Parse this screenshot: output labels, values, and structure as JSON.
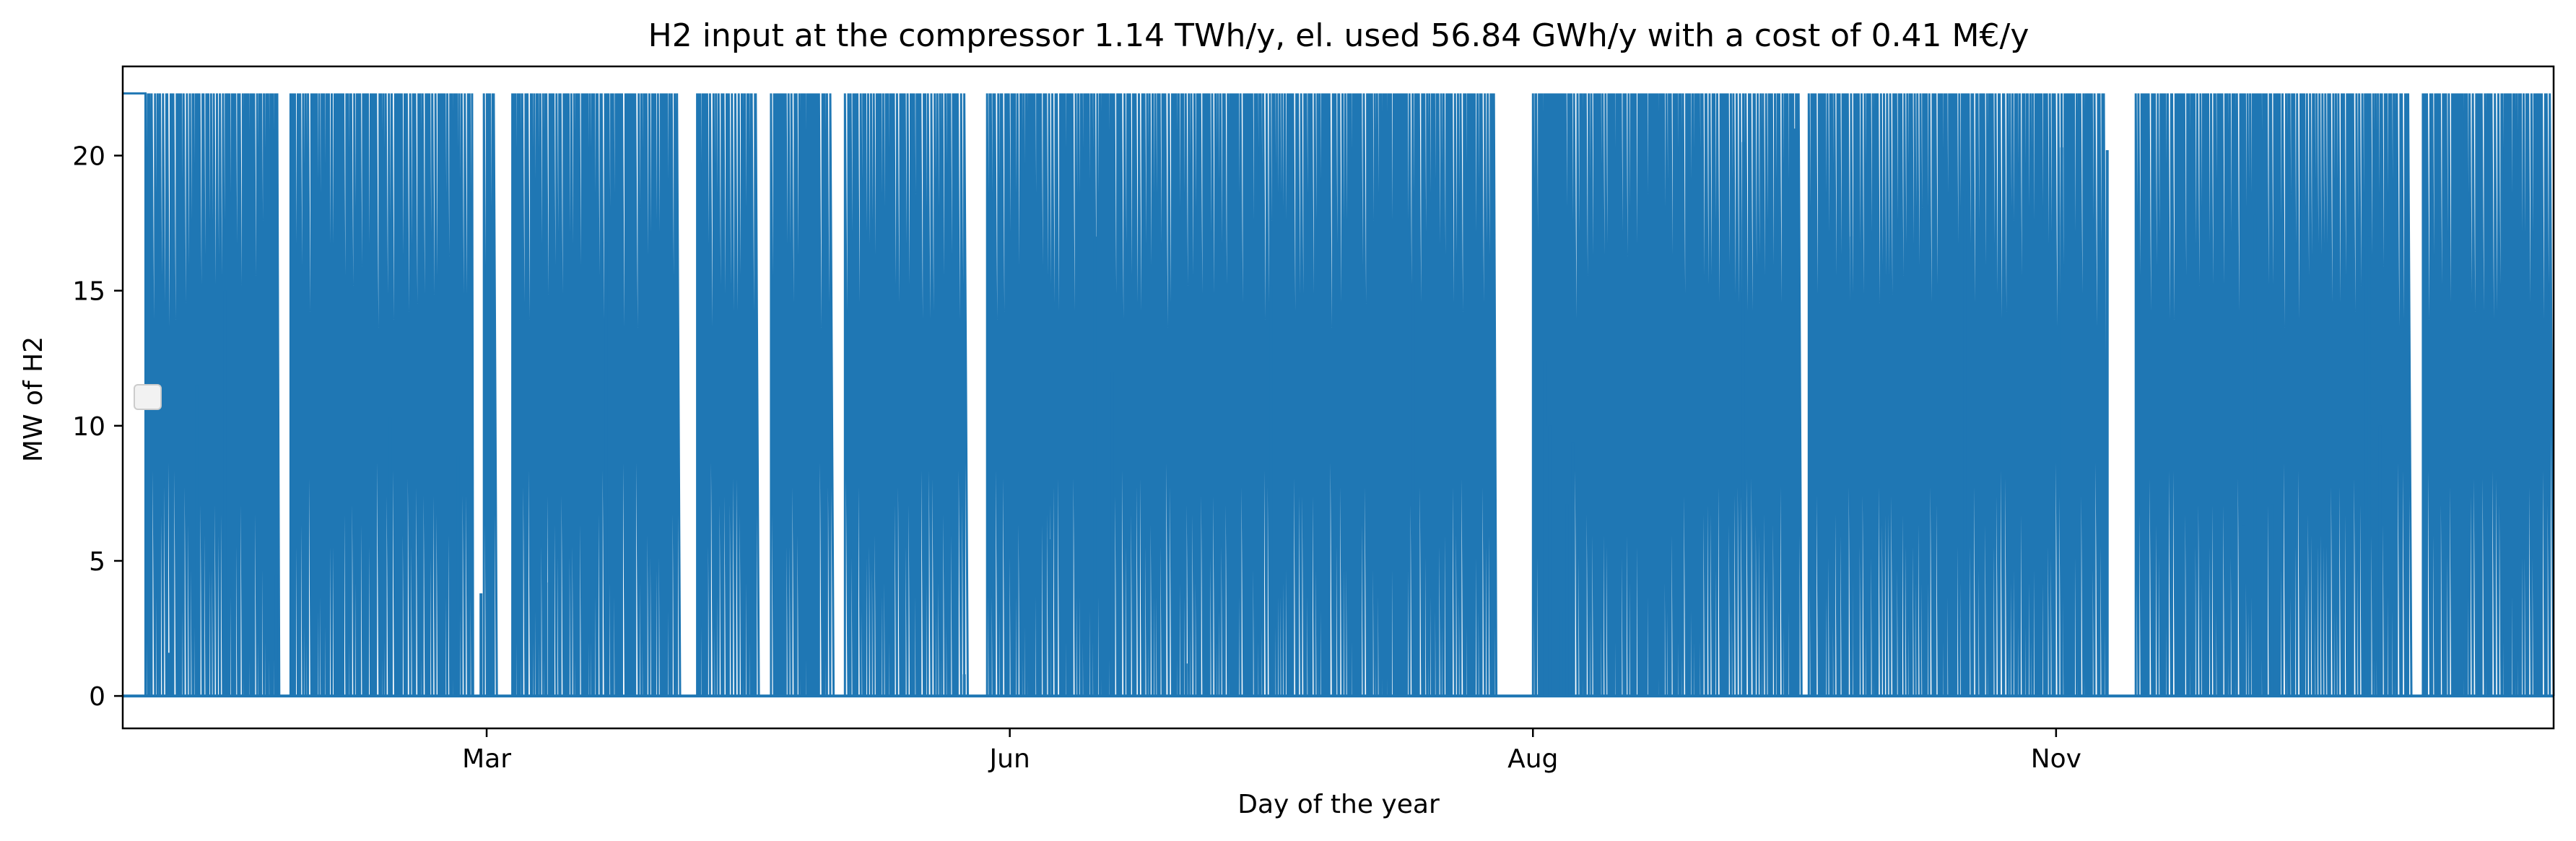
{
  "chart_data": {
    "type": "line",
    "title": "H2 input at the compressor 1.14 TWh/y, el. used 56.84 GWh/y with a cost of 0.41 M€/y",
    "xlabel": "Day of the year",
    "ylabel": "MW of H2",
    "x_range": [
      "Jan",
      "Dec"
    ],
    "ylim": [
      -1.2,
      23.3
    ],
    "yticks": [
      0,
      5,
      10,
      15,
      20
    ],
    "xticks": [
      {
        "label": "Mar",
        "day": 60
      },
      {
        "label": "Jun",
        "day": 152
      },
      {
        "label": "Aug",
        "day": 244
      },
      {
        "label": "Nov",
        "day": 336
      }
    ],
    "grid": false,
    "legend": "empty",
    "series": [
      {
        "color": "#1f77b4",
        "max_value": 22.3,
        "min_value": 0,
        "intermediate_levels": [
          {
            "day": 4,
            "value": 1.6
          },
          {
            "day": 9,
            "value": 11.5
          },
          {
            "day": 14,
            "value": 15.0
          },
          {
            "day": 23,
            "value": 4.5
          },
          {
            "day": 43,
            "value": 10.3
          },
          {
            "day": 55,
            "value": 8.9
          },
          {
            "day": 59,
            "value": 3.8
          },
          {
            "day": 61,
            "value": 17.5
          },
          {
            "day": 71,
            "value": 4.2
          },
          {
            "day": 81,
            "value": 16.8
          },
          {
            "day": 107,
            "value": 11.2
          },
          {
            "day": 144,
            "value": 0.8
          },
          {
            "day": 159,
            "value": 5.8
          },
          {
            "day": 167,
            "value": 17.0
          },
          {
            "day": 170,
            "value": 12.0
          },
          {
            "day": 183,
            "value": 1.2
          },
          {
            "day": 198,
            "value": 15.2
          },
          {
            "day": 223,
            "value": 18.7
          },
          {
            "day": 246,
            "value": 12.4
          },
          {
            "day": 247,
            "value": 10.0
          },
          {
            "day": 249,
            "value": 3.1
          },
          {
            "day": 250,
            "value": 7.1
          },
          {
            "day": 251,
            "value": 9.4
          },
          {
            "day": 268,
            "value": 1.2
          },
          {
            "day": 281,
            "value": 20.5
          },
          {
            "day": 290,
            "value": 21.0
          },
          {
            "day": 300,
            "value": 17.0
          },
          {
            "day": 320,
            "value": 18.7
          },
          {
            "day": 337,
            "value": 20.3
          },
          {
            "day": 342,
            "value": 0.3
          },
          {
            "day": 345,
            "value": 20.2
          },
          {
            "day": 369,
            "value": 6.3
          },
          {
            "day": 371,
            "value": 17.8
          },
          {
            "day": 374,
            "value": 7.1
          },
          {
            "day": 388,
            "value": 4.8
          },
          {
            "day": 390,
            "value": 16.6
          },
          {
            "day": 391,
            "value": 17.0
          },
          {
            "day": 393,
            "value": 10.0
          }
        ],
        "gaps_at_zero_days": [
          [
            23.5,
            25.5
          ],
          [
            57.5,
            59.5
          ],
          [
            61.5,
            64.5
          ],
          [
            94,
            97
          ],
          [
            107.5,
            110
          ],
          [
            120.5,
            123
          ],
          [
            144.5,
            148
          ],
          [
            237.5,
            244
          ],
          [
            291,
            292.5
          ],
          [
            344.5,
            350
          ],
          [
            398,
            400.5
          ],
          [
            423.5,
            428.5
          ]
        ]
      }
    ]
  }
}
